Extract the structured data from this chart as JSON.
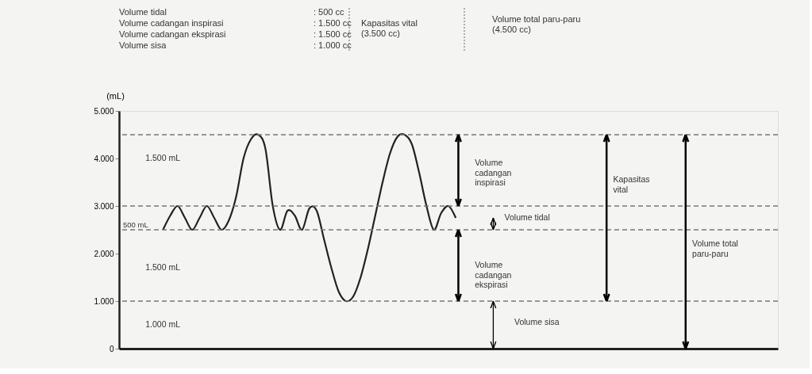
{
  "chart_data": {
    "type": "line",
    "ylabel": "(mL)",
    "categories": [
      null,
      null,
      null,
      null,
      null,
      null,
      null,
      null,
      null,
      null,
      null,
      null,
      null,
      null,
      null,
      null,
      null,
      null,
      null,
      null,
      null,
      null,
      null,
      null,
      null,
      null,
      null,
      null,
      null,
      null,
      null,
      null,
      null,
      null,
      null,
      null,
      null,
      null,
      null,
      null,
      null,
      null,
      null,
      null,
      null,
      null,
      null,
      null,
      null,
      null,
      null,
      null,
      null,
      null,
      null,
      null,
      null,
      null,
      null,
      null,
      null,
      null,
      null,
      null,
      null,
      null,
      null,
      null,
      null,
      null,
      null,
      null,
      null,
      null,
      null,
      null,
      null,
      null,
      null,
      null,
      null,
      null,
      null,
      null,
      null,
      null,
      null,
      null,
      null,
      null,
      null
    ],
    "series": [
      {
        "color": "#222222",
        "values": [
          null,
          null,
          null,
          null,
          null,
          null,
          2500,
          2800,
          3000,
          2750,
          2500,
          2750,
          3000,
          2750,
          2500,
          2700,
          3200,
          4000,
          4400,
          4500,
          4200,
          3000,
          2500,
          2900,
          2800,
          2500,
          2950,
          2900,
          2300,
          1700,
          1200,
          1000,
          1100,
          1500,
          2100,
          2800,
          3500,
          4100,
          4450,
          4500,
          4300,
          3700,
          3000,
          2500,
          2850,
          3000,
          2750,
          null,
          null,
          null,
          null,
          null,
          null,
          null,
          null,
          null,
          null,
          null,
          null,
          null,
          null,
          null,
          null,
          null,
          null,
          null,
          null,
          null,
          null,
          null,
          null,
          null,
          null,
          null,
          null,
          null,
          null,
          null,
          null,
          null,
          null,
          null,
          null,
          null,
          null,
          null,
          null,
          null,
          null,
          null,
          null
        ]
      }
    ],
    "ylim": [
      0,
      5000
    ],
    "yticks": [
      0,
      {
        "value": 1000,
        "label": "1.000"
      },
      {
        "value": 2000,
        "label": "2.000"
      },
      {
        "value": 3000,
        "label": "3.000"
      },
      {
        "value": 4000,
        "label": "4.000"
      },
      {
        "value": 5000,
        "label": "5.000"
      }
    ],
    "ref_lines": [
      {
        "axis": "y",
        "value": 4500,
        "line_style": "dashed",
        "color": "#777777"
      },
      {
        "axis": "y",
        "value": 3000,
        "line_style": "dashed",
        "color": "#777777"
      },
      {
        "axis": "y",
        "value": 2500,
        "line_style": "dashed",
        "color": "#777777"
      },
      {
        "axis": "y",
        "value": 1000,
        "line_style": "dashed",
        "color": "#777777"
      }
    ],
    "annotations": [
      "Volume tidal",
      "Volume cadangan inspirasi",
      "Volume cadangan ekspirasi",
      "Volume sisa",
      ": 500 cc",
      ": 1.500 cc",
      ": 1.500 cc",
      ": 1.000 cc",
      "Kapasitas vital\n(3.500 cc)",
      "Volume total paru-paru\n(4.500 cc)",
      "1.500 mL",
      "500 mL",
      "1.500 mL",
      "1.000 mL",
      "Volume\ncadangan\ninspirasi",
      "Volume tidal",
      "Volume\ncadangan\nekspirasi",
      "Volume sisa",
      "Kapasitas\nvital",
      "Volume total\nparu-paru"
    ],
    "grid": false,
    "marker": "none",
    "line_style": "solid"
  }
}
